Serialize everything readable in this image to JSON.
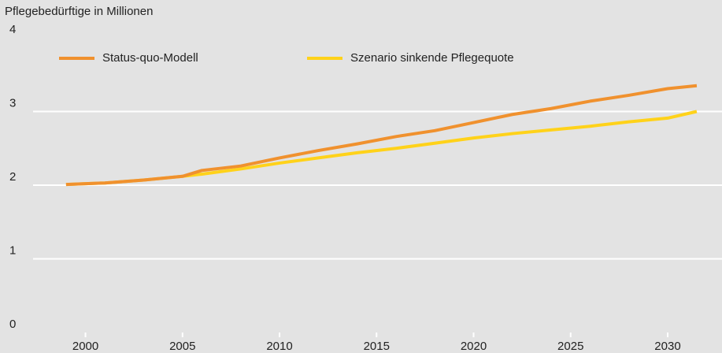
{
  "chart_data": {
    "type": "line",
    "title": "Pflegebedürftige in Millionen",
    "x": [
      1999,
      2001,
      2003,
      2005,
      2006,
      2008,
      2010,
      2012,
      2014,
      2016,
      2018,
      2020,
      2022,
      2024,
      2026,
      2028,
      2030,
      2031.5
    ],
    "series": [
      {
        "name": "Status-quo-Modell",
        "color": "#f0912e",
        "values": [
          2.01,
          2.03,
          2.07,
          2.12,
          2.2,
          2.26,
          2.37,
          2.47,
          2.56,
          2.66,
          2.74,
          2.85,
          2.96,
          3.04,
          3.14,
          3.22,
          3.31,
          3.35
        ]
      },
      {
        "name": "Szenario sinkende Pflegequote",
        "color": "#ffd21a",
        "values": [
          2.01,
          2.03,
          2.07,
          2.12,
          2.15,
          2.22,
          2.3,
          2.37,
          2.44,
          2.5,
          2.57,
          2.64,
          2.7,
          2.75,
          2.8,
          2.86,
          2.91,
          3.0
        ]
      }
    ],
    "xlim": [
      1997.3,
      2032.8
    ],
    "xticks": [
      2000,
      2005,
      2010,
      2015,
      2020,
      2025,
      2030
    ],
    "ylim": [
      0,
      4
    ],
    "yticks": [
      0,
      1,
      2,
      3,
      4
    ],
    "grid": true
  }
}
